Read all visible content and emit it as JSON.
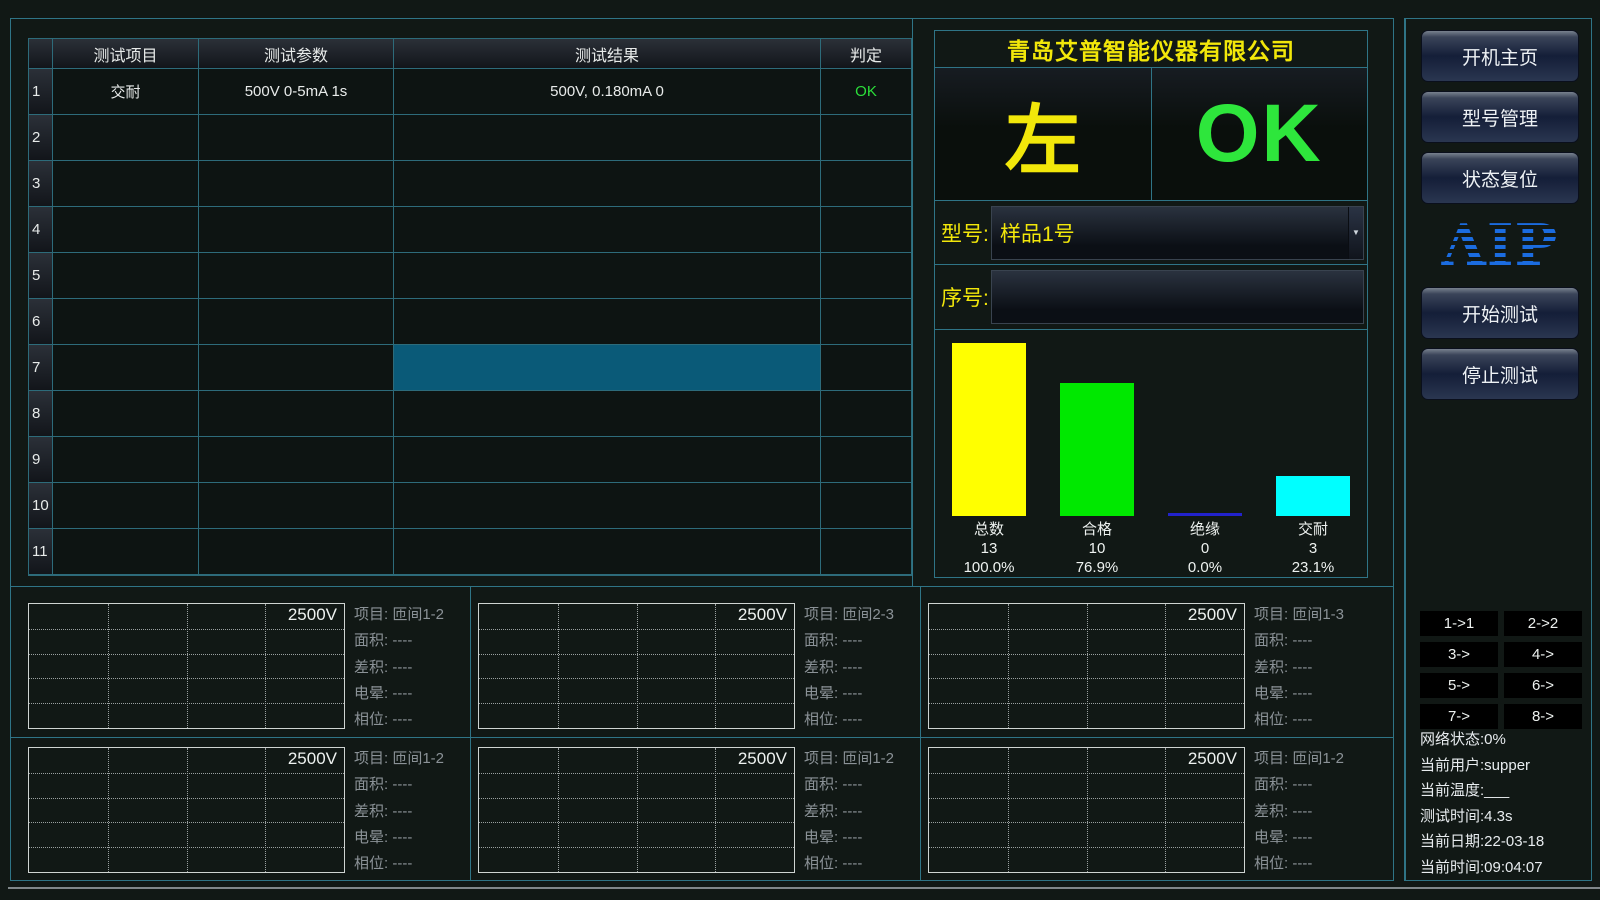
{
  "company_title": "青岛艾普智能仪器有限公司",
  "table": {
    "headers": [
      "测试项目",
      "测试参数",
      "测试结果",
      "判定"
    ],
    "rows": [
      {
        "num": "1",
        "item": "交耐",
        "param": "500V 0-5mA 1s",
        "result": "500V, 0.180mA 0",
        "judge": "OK"
      },
      {
        "num": "2",
        "item": "",
        "param": "",
        "result": "",
        "judge": ""
      },
      {
        "num": "3",
        "item": "",
        "param": "",
        "result": "",
        "judge": ""
      },
      {
        "num": "4",
        "item": "",
        "param": "",
        "result": "",
        "judge": ""
      },
      {
        "num": "5",
        "item": "",
        "param": "",
        "result": "",
        "judge": ""
      },
      {
        "num": "6",
        "item": "",
        "param": "",
        "result": "",
        "judge": ""
      },
      {
        "num": "7",
        "item": "",
        "param": "",
        "result": "",
        "judge": ""
      },
      {
        "num": "8",
        "item": "",
        "param": "",
        "result": "",
        "judge": ""
      },
      {
        "num": "9",
        "item": "",
        "param": "",
        "result": "",
        "judge": ""
      },
      {
        "num": "10",
        "item": "",
        "param": "",
        "result": "",
        "judge": ""
      },
      {
        "num": "11",
        "item": "",
        "param": "",
        "result": "",
        "judge": ""
      }
    ],
    "highlight": {
      "row": 7,
      "column": "result",
      "color": "#0a5a78"
    },
    "judge_ok_color": "#2bdf3a"
  },
  "indicator": {
    "position": "左",
    "position_color": "#f2e70a",
    "result": "OK",
    "result_color": "#2ee63c"
  },
  "model_row": {
    "label": "型号:",
    "value": "样品1号",
    "arrow_icon": "▼"
  },
  "serial_row": {
    "label": "序号:",
    "value": ""
  },
  "chart_data": {
    "type": "bar",
    "categories": [
      "总数",
      "合格",
      "绝缘",
      "交耐"
    ],
    "values": [
      13,
      10,
      0,
      3
    ],
    "percent_labels": [
      "100.0%",
      "76.9%",
      "0.0%",
      "23.1%"
    ],
    "colors": [
      "#ffff00",
      "#00e800",
      "#2222cc",
      "#00ffff"
    ],
    "ylim": [
      0,
      13
    ],
    "grid": false,
    "legend": false,
    "title": "",
    "xlabel": "",
    "ylabel": ""
  },
  "waveforms": {
    "voltage_label": "2500V",
    "field_labels": {
      "item": "项目",
      "area": "面积",
      "integral": "差积",
      "corona": "电晕",
      "phase": "相位"
    },
    "empty_value": "----",
    "panels": [
      {
        "item": "匝间1-2",
        "area": "----",
        "integral": "----",
        "corona": "----",
        "phase": "----"
      },
      {
        "item": "匝间2-3",
        "area": "----",
        "integral": "----",
        "corona": "----",
        "phase": "----"
      },
      {
        "item": "匝间1-3",
        "area": "----",
        "integral": "----",
        "corona": "----",
        "phase": "----"
      },
      {
        "item": "匝间1-2",
        "area": "----",
        "integral": "----",
        "corona": "----",
        "phase": "----"
      },
      {
        "item": "匝间1-2",
        "area": "----",
        "integral": "----",
        "corona": "----",
        "phase": "----"
      },
      {
        "item": "匝间1-2",
        "area": "----",
        "integral": "----",
        "corona": "----",
        "phase": "----"
      }
    ]
  },
  "sidebar": {
    "home_button": "开机主页",
    "model_manage_button": "型号管理",
    "status_reset_button": "状态复位",
    "logo_text": "AIP",
    "logo_color": "#1b6ce0",
    "start_button": "开始测试",
    "stop_button": "停止测试",
    "channel_buttons": [
      "1->1",
      "2->2",
      "3->",
      "4->",
      "5->",
      "6->",
      "7->",
      "8->"
    ],
    "status_lines": [
      "网络状态:0%",
      "当前用户:supper",
      "当前温度:___",
      "测试时间:4.3s",
      "当前日期:22-03-18",
      "当前时间:09:04:07"
    ]
  }
}
